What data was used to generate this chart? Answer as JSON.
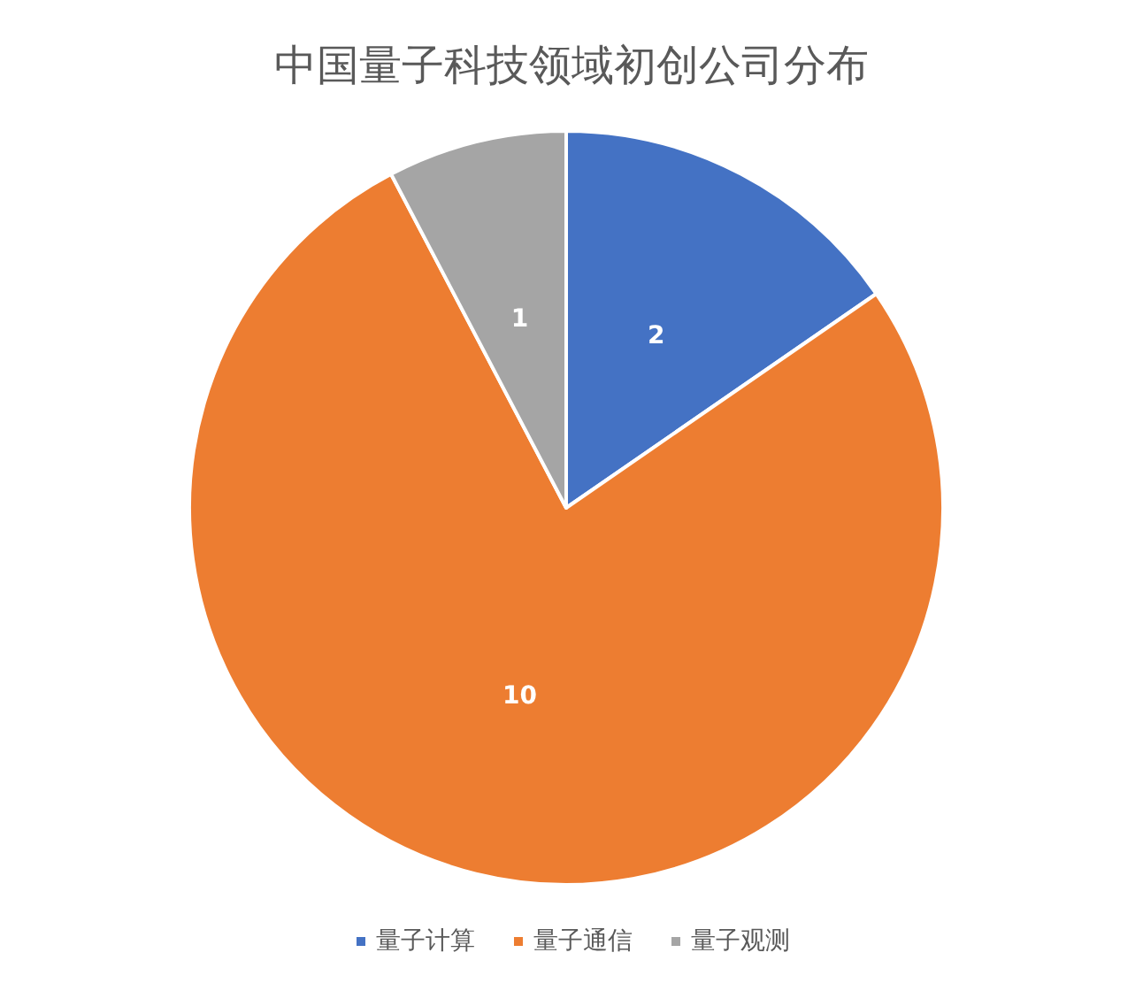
{
  "chart_data": {
    "type": "pie",
    "title": "中国量子科技领域初创公司分布",
    "categories": [
      "量子计算",
      "量子通信",
      "量子观测"
    ],
    "values": [
      2,
      10,
      1
    ],
    "colors": [
      "#4472c4",
      "#ed7d31",
      "#a5a5a5"
    ],
    "data_labels": true,
    "legend": "bottom"
  }
}
